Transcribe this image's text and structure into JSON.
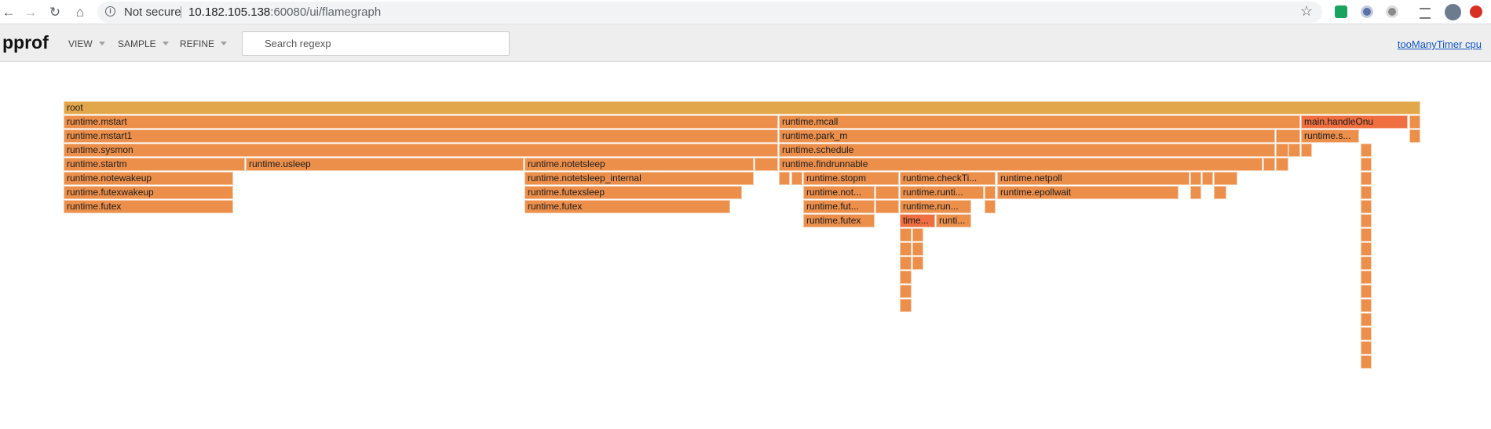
{
  "browser": {
    "back_icon": "arrow-left-icon",
    "forward_icon": "arrow-right-icon",
    "reload_icon": "reload-icon",
    "home_icon": "home-icon",
    "security_label": "Not secure",
    "url_host": "10.182.105.138",
    "url_rest": ":60080/ui/flamegraph",
    "bookmark_icon": "star-icon"
  },
  "header": {
    "title": "pprof",
    "menus": [
      {
        "label": "VIEW"
      },
      {
        "label": "SAMPLE"
      },
      {
        "label": "REFINE"
      }
    ],
    "search_placeholder": "Search regexp",
    "profile_link": "tooManyTimer cpu"
  },
  "colors": {
    "root": "#e2a74a",
    "frame": "#ec8f4b",
    "hot": "#ef6f40"
  },
  "frames": [
    {
      "id": "f0",
      "label": "root",
      "col": "root"
    },
    {
      "id": "f1",
      "label": "runtime.mstart",
      "col": "frame"
    },
    {
      "id": "f2",
      "label": "runtime.mcall",
      "col": "frame"
    },
    {
      "id": "f3",
      "label": "main.handleOnu",
      "col": "hot"
    },
    {
      "id": "f4",
      "label": "",
      "col": "frame"
    },
    {
      "id": "f5",
      "label": "runtime.mstart1",
      "col": "frame"
    },
    {
      "id": "f6",
      "label": "runtime.park_m",
      "col": "frame"
    },
    {
      "id": "f7",
      "label": "",
      "col": "frame"
    },
    {
      "id": "f8",
      "label": "runtime.s...",
      "col": "frame"
    },
    {
      "id": "f9",
      "label": "",
      "col": "frame"
    },
    {
      "id": "f10",
      "label": "runtime.sysmon",
      "col": "frame"
    },
    {
      "id": "f11",
      "label": "runtime.schedule",
      "col": "frame"
    },
    {
      "id": "f12",
      "label": "runtime.startm",
      "col": "frame"
    },
    {
      "id": "f13",
      "label": "runtime.usleep",
      "col": "frame"
    },
    {
      "id": "f14",
      "label": "runtime.notetsleep",
      "col": "frame"
    },
    {
      "id": "f15",
      "label": "runtime.findrunnable",
      "col": "frame"
    },
    {
      "id": "f16",
      "label": "runtime.notewakeup",
      "col": "frame"
    },
    {
      "id": "f17",
      "label": "runtime.notetsleep_internal",
      "col": "frame"
    },
    {
      "id": "f18",
      "label": "runtime.stopm",
      "col": "frame"
    },
    {
      "id": "f19",
      "label": "runtime.checkTi...",
      "col": "frame"
    },
    {
      "id": "f20",
      "label": "runtime.netpoll",
      "col": "frame"
    },
    {
      "id": "f21",
      "label": "runtime.futexwakeup",
      "col": "frame"
    },
    {
      "id": "f22",
      "label": "runtime.futexsleep",
      "col": "frame"
    },
    {
      "id": "f23",
      "label": "runtime.not...",
      "col": "frame"
    },
    {
      "id": "f24",
      "label": "runtime.runti...",
      "col": "frame"
    },
    {
      "id": "f25",
      "label": "runtime.epollwait",
      "col": "frame"
    },
    {
      "id": "f26",
      "label": "runtime.futex",
      "col": "frame"
    },
    {
      "id": "f27",
      "label": "runtime.futex",
      "col": "frame"
    },
    {
      "id": "f28",
      "label": "runtime.fut...",
      "col": "frame"
    },
    {
      "id": "f29",
      "label": "runtime.run...",
      "col": "frame"
    },
    {
      "id": "f30",
      "label": "runtime.futex",
      "col": "frame"
    },
    {
      "id": "f31",
      "label": "time...",
      "col": "hot"
    },
    {
      "id": "f32",
      "label": "runti...",
      "col": "frame"
    }
  ]
}
